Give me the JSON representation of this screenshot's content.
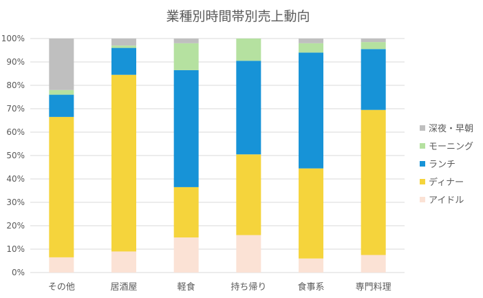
{
  "chart_data": {
    "type": "bar",
    "stacked": true,
    "percent_stacked": true,
    "title": "業種別時間帯別売上動向",
    "xlabel": "",
    "ylabel": "",
    "ylim": [
      0,
      100
    ],
    "y_ticks": [
      "0%",
      "10%",
      "20%",
      "30%",
      "40%",
      "50%",
      "60%",
      "70%",
      "80%",
      "90%",
      "100%"
    ],
    "categories": [
      "その他",
      "居酒屋",
      "軽食",
      "持ち帰り",
      "食事系",
      "専門料理"
    ],
    "legend_position": "right",
    "grid": true,
    "series": [
      {
        "name": "アイドル",
        "color": "#fbe2d5",
        "values": [
          6.5,
          9,
          15,
          16,
          6,
          7.5
        ]
      },
      {
        "name": "ディナー",
        "color": "#f5d43c",
        "values": [
          60,
          75.5,
          21.5,
          34.5,
          38.5,
          62
        ]
      },
      {
        "name": "ランチ",
        "color": "#1793d7",
        "values": [
          9.5,
          11.5,
          50,
          40,
          49.5,
          26
        ]
      },
      {
        "name": "モーニング",
        "color": "#b5e1a0",
        "values": [
          2,
          1,
          11.5,
          9.5,
          4,
          3
        ]
      },
      {
        "name": "深夜・早朝",
        "color": "#bfbfbf",
        "values": [
          22,
          3,
          2,
          0,
          2,
          1.5
        ]
      }
    ]
  }
}
